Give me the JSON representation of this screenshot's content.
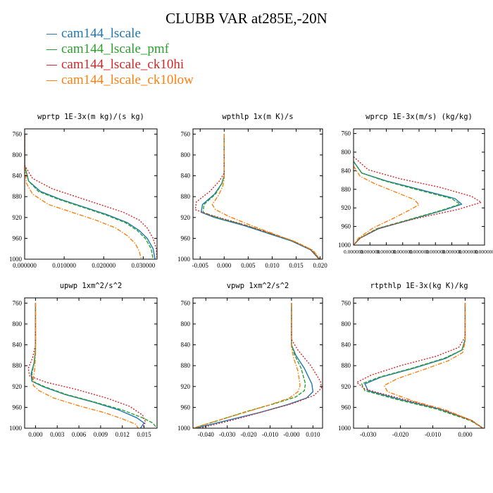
{
  "title": "CLUBB VAR at285E,-20N",
  "colors": {
    "cam144_lscale": "#1f77b4",
    "cam144_lscale_pmf": "#2ca02c",
    "cam144_lscale_ck10hi": "#d62728",
    "cam144_lscale_ck10low": "#ff7f0e"
  },
  "legend": [
    {
      "name": "cam144_lscale",
      "color": "#1f77b4",
      "style": "solid"
    },
    {
      "name": "cam144_lscale_pmf",
      "color": "#2ca02c",
      "style": "dashed"
    },
    {
      "name": "cam144_lscale_ck10hi",
      "color": "#d62728",
      "style": "dotted"
    },
    {
      "name": "cam144_lscale_ck10low",
      "color": "#ff7f0e",
      "style": "dashdot"
    }
  ],
  "chart_data": [
    {
      "type": "line",
      "title": "wprtp  1E-3x(m kg)/(s kg)",
      "xlim": [
        0,
        0.0335
      ],
      "ylim": [
        1000,
        750
      ],
      "xticks": [
        "0.000000",
        "0.010000",
        "0.020000",
        "0.030000"
      ],
      "xtick_values": [
        0,
        0.01,
        0.02,
        0.03
      ],
      "yticks": [
        "760",
        "800",
        "840",
        "880",
        "920",
        "960",
        "1000"
      ],
      "ytick_values": [
        760,
        800,
        840,
        880,
        920,
        960,
        1000
      ],
      "series": [
        {
          "name": "cam144_lscale",
          "x": [
            0,
            0,
            0.001,
            0.004,
            0.009,
            0.015,
            0.021,
            0.026,
            0.029,
            0.031,
            0.0325,
            0.033
          ],
          "y": [
            760,
            820,
            850,
            870,
            885,
            900,
            915,
            930,
            945,
            960,
            980,
            1000
          ]
        },
        {
          "name": "cam144_lscale_pmf",
          "x": [
            0,
            0,
            0.001,
            0.0035,
            0.0085,
            0.0145,
            0.0205,
            0.0255,
            0.0285,
            0.0305,
            0.032,
            0.0325
          ],
          "y": [
            760,
            820,
            850,
            870,
            885,
            900,
            915,
            930,
            945,
            960,
            980,
            1000
          ]
        },
        {
          "name": "cam144_lscale_ck10hi",
          "x": [
            0,
            0,
            0.002,
            0.007,
            0.013,
            0.019,
            0.025,
            0.029,
            0.031,
            0.0325,
            0.0333,
            0.0335
          ],
          "y": [
            760,
            820,
            845,
            865,
            880,
            895,
            910,
            925,
            940,
            960,
            980,
            1000
          ]
        },
        {
          "name": "cam144_lscale_ck10low",
          "x": [
            0,
            0,
            0.0005,
            0.002,
            0.006,
            0.012,
            0.018,
            0.023,
            0.026,
            0.028,
            0.029,
            0.0295
          ],
          "y": [
            760,
            820,
            855,
            875,
            895,
            910,
            925,
            940,
            955,
            970,
            985,
            1000
          ]
        }
      ]
    },
    {
      "type": "line",
      "title": "wpthlp  1x(m K)/s",
      "xlim": [
        -0.0065,
        0.0205
      ],
      "ylim": [
        1000,
        750
      ],
      "xticks": [
        "-0.005",
        "0.000",
        "0.005",
        "0.010",
        "0.015",
        "0.020"
      ],
      "xtick_values": [
        -0.005,
        0,
        0.005,
        0.01,
        0.015,
        0.02
      ],
      "yticks": [
        "760",
        "800",
        "840",
        "880",
        "920",
        "960",
        "1000"
      ],
      "ytick_values": [
        760,
        800,
        840,
        880,
        920,
        960,
        1000
      ],
      "series": [
        {
          "name": "cam144_lscale",
          "x": [
            0,
            0,
            -0.0005,
            -0.002,
            -0.0045,
            -0.0048,
            -0.002,
            0.004,
            0.009,
            0.014,
            0.018,
            0.0198
          ],
          "y": [
            760,
            840,
            855,
            875,
            895,
            910,
            920,
            935,
            950,
            965,
            982,
            1000
          ]
        },
        {
          "name": "cam144_lscale_pmf",
          "x": [
            0,
            0,
            -0.0005,
            -0.0018,
            -0.0042,
            -0.0044,
            -0.0015,
            0.0045,
            0.0095,
            0.0143,
            0.0182,
            0.0199
          ],
          "y": [
            760,
            840,
            855,
            875,
            895,
            910,
            920,
            935,
            950,
            965,
            982,
            1000
          ]
        },
        {
          "name": "cam144_lscale_ck10hi",
          "x": [
            0,
            0,
            -0.001,
            -0.003,
            -0.0058,
            -0.006,
            -0.003,
            0.0035,
            0.0088,
            0.0138,
            0.0178,
            0.0198
          ],
          "y": [
            760,
            835,
            850,
            870,
            890,
            905,
            915,
            932,
            948,
            963,
            980,
            1000
          ]
        },
        {
          "name": "cam144_lscale_ck10low",
          "x": [
            0,
            0,
            -0.0003,
            -0.0012,
            -0.0025,
            -0.0018,
            0.001,
            0.0055,
            0.0105,
            0.015,
            0.0185,
            0.02
          ],
          "y": [
            760,
            845,
            860,
            878,
            895,
            905,
            918,
            935,
            952,
            967,
            983,
            1000
          ]
        }
      ]
    },
    {
      "type": "line",
      "title": "wprcp  1E-3x(m/s) (kg/kg)",
      "xlim": [
        0,
        8e-07
      ],
      "ylim": [
        1000,
        750
      ],
      "xticks": [
        "0.000000",
        "0.000000",
        "0.000000",
        "0.000000",
        "0.000000",
        "0.000000",
        "0.000000",
        "0.000000",
        "0.000000"
      ],
      "xtick_values": [
        0,
        1e-07,
        2e-07,
        3e-07,
        4e-07,
        5e-07,
        6e-07,
        7e-07,
        8e-07
      ],
      "yticks": [
        "760",
        "800",
        "840",
        "880",
        "920",
        "960",
        "1000"
      ],
      "ytick_values": [
        760,
        800,
        840,
        880,
        920,
        960,
        1000
      ],
      "series": [
        {
          "name": "cam144_lscale",
          "x": [
            0,
            5e-08,
            2e-07,
            4e-07,
            6.2e-07,
            6.6e-07,
            5.5e-07,
            3.5e-07,
            1.5e-07,
            4e-08,
            0
          ],
          "y": [
            820,
            845,
            862,
            880,
            900,
            912,
            925,
            945,
            965,
            985,
            1000
          ]
        },
        {
          "name": "cam144_lscale_pmf",
          "x": [
            0,
            5e-08,
            1.9e-07,
            3.8e-07,
            6e-07,
            6.5e-07,
            5.4e-07,
            3.4e-07,
            1.4e-07,
            4e-08,
            0
          ],
          "y": [
            820,
            845,
            862,
            880,
            900,
            912,
            925,
            945,
            965,
            985,
            1000
          ]
        },
        {
          "name": "cam144_lscale_ck10hi",
          "x": [
            0,
            9e-08,
            2.8e-07,
            5.2e-07,
            7.2e-07,
            7.8e-07,
            6.4e-07,
            3.8e-07,
            1.6e-07,
            4e-08,
            0
          ],
          "y": [
            810,
            838,
            857,
            875,
            895,
            908,
            923,
            943,
            963,
            985,
            1000
          ]
        },
        {
          "name": "cam144_lscale_ck10low",
          "x": [
            0,
            4e-08,
            1.3e-07,
            2.5e-07,
            3.7e-07,
            4e-07,
            3.4e-07,
            2.4e-07,
            1.2e-07,
            3e-08,
            0
          ],
          "y": [
            830,
            852,
            868,
            885,
            902,
            913,
            925,
            943,
            963,
            985,
            1000
          ]
        }
      ]
    },
    {
      "type": "line",
      "title": "upwp  1xm^2/s^2",
      "xlim": [
        -0.0015,
        0.0168
      ],
      "ylim": [
        1000,
        750
      ],
      "xticks": [
        "0.000",
        "0.003",
        "0.006",
        "0.009",
        "0.012",
        "0.015"
      ],
      "xtick_values": [
        0,
        0.003,
        0.006,
        0.009,
        0.012,
        0.015
      ],
      "yticks": [
        "760",
        "800",
        "840",
        "880",
        "920",
        "960",
        "1000"
      ],
      "ytick_values": [
        760,
        800,
        840,
        880,
        920,
        960,
        1000
      ],
      "series": [
        {
          "name": "cam144_lscale",
          "x": [
            0,
            0,
            -0.0002,
            -0.0006,
            -0.0005,
            0.001,
            0.004,
            0.008,
            0.0115,
            0.014,
            0.015,
            0.0145
          ],
          "y": [
            760,
            850,
            875,
            895,
            910,
            920,
            935,
            950,
            965,
            980,
            990,
            1000
          ]
        },
        {
          "name": "cam144_lscale_pmf",
          "x": [
            0,
            0,
            -0.0002,
            -0.0005,
            -0.0004,
            0.0012,
            0.0042,
            0.0082,
            0.012,
            0.0148,
            0.0162,
            0.0168
          ],
          "y": [
            760,
            850,
            875,
            895,
            910,
            920,
            935,
            950,
            965,
            980,
            990,
            1000
          ]
        },
        {
          "name": "cam144_lscale_ck10hi",
          "x": [
            0,
            0,
            -0.0004,
            -0.001,
            -0.0008,
            0.0015,
            0.0055,
            0.0098,
            0.013,
            0.0148,
            0.0152,
            0.0148
          ],
          "y": [
            760,
            840,
            865,
            885,
            900,
            912,
            925,
            942,
            958,
            975,
            988,
            1000
          ]
        },
        {
          "name": "cam144_lscale_ck10low",
          "x": [
            0,
            0,
            -0.0001,
            -0.0003,
            -0.0003,
            0.0005,
            0.0025,
            0.006,
            0.0095,
            0.012,
            0.0138,
            0.0142
          ],
          "y": [
            760,
            860,
            885,
            905,
            918,
            928,
            942,
            957,
            970,
            982,
            992,
            1000
          ]
        }
      ]
    },
    {
      "type": "line",
      "title": "vpwp  1xm^2/s^2",
      "xlim": [
        -0.046,
        0.0145
      ],
      "ylim": [
        1000,
        750
      ],
      "xticks": [
        "-0.040",
        "-0.030",
        "-0.020",
        "-0.010",
        "-0.000",
        "0.010"
      ],
      "xtick_values": [
        -0.04,
        -0.03,
        -0.02,
        -0.01,
        0,
        0.01
      ],
      "yticks": [
        "760",
        "800",
        "840",
        "880",
        "920",
        "960",
        "1000"
      ],
      "ytick_values": [
        760,
        800,
        840,
        880,
        920,
        960,
        1000
      ],
      "series": [
        {
          "name": "cam144_lscale",
          "x": [
            0,
            0,
            0.002,
            0.006,
            0.0095,
            0.01,
            0.007,
            -0.002,
            -0.015,
            -0.03,
            -0.045
          ],
          "y": [
            760,
            840,
            860,
            885,
            915,
            930,
            942,
            955,
            970,
            985,
            1000
          ]
        },
        {
          "name": "cam144_lscale_pmf",
          "x": [
            0,
            0,
            0.0015,
            0.0045,
            0.0065,
            0.006,
            0.002,
            -0.008,
            -0.021,
            -0.034,
            -0.046
          ],
          "y": [
            760,
            840,
            860,
            885,
            915,
            928,
            940,
            953,
            968,
            985,
            1000
          ]
        },
        {
          "name": "cam144_lscale_ck10hi",
          "x": [
            0,
            0,
            0.003,
            0.009,
            0.0135,
            0.014,
            0.0105,
            0.001,
            -0.013,
            -0.028,
            -0.043
          ],
          "y": [
            760,
            830,
            850,
            880,
            910,
            923,
            937,
            952,
            968,
            985,
            1000
          ]
        },
        {
          "name": "cam144_lscale_ck10low",
          "x": [
            0,
            0,
            0.001,
            0.003,
            0.004,
            0.003,
            -0.001,
            -0.01,
            -0.022,
            -0.035,
            -0.046
          ],
          "y": [
            760,
            845,
            865,
            890,
            918,
            930,
            942,
            955,
            970,
            986,
            1000
          ]
        }
      ]
    },
    {
      "type": "line",
      "title": "rtpthlp  1E-3x(kg K)/kg",
      "xlim": [
        -0.0345,
        0.006
      ],
      "ylim": [
        1000,
        750
      ],
      "xticks": [
        "-0.030",
        "-0.020",
        "-0.010",
        "0.000"
      ],
      "xtick_values": [
        -0.03,
        -0.02,
        -0.01,
        0
      ],
      "yticks": [
        "760",
        "800",
        "840",
        "880",
        "920",
        "960",
        "1000"
      ],
      "ytick_values": [
        760,
        800,
        840,
        880,
        920,
        960,
        1000
      ],
      "series": [
        {
          "name": "cam144_lscale",
          "x": [
            0,
            0,
            -0.001,
            -0.006,
            -0.016,
            -0.026,
            -0.031,
            -0.03,
            -0.02,
            -0.008,
            0.002,
            0.0055
          ],
          "y": [
            760,
            830,
            850,
            866,
            885,
            902,
            915,
            928,
            945,
            963,
            985,
            1000
          ]
        },
        {
          "name": "cam144_lscale_pmf",
          "x": [
            0,
            0,
            -0.001,
            -0.0065,
            -0.0165,
            -0.0265,
            -0.032,
            -0.031,
            -0.021,
            -0.009,
            0.0015,
            0.0055
          ],
          "y": [
            760,
            830,
            850,
            866,
            885,
            902,
            915,
            928,
            945,
            963,
            985,
            1000
          ]
        },
        {
          "name": "cam144_lscale_ck10hi",
          "x": [
            0,
            0,
            -0.002,
            -0.009,
            -0.02,
            -0.029,
            -0.0335,
            -0.031,
            -0.02,
            -0.008,
            0.002,
            0.0055
          ],
          "y": [
            760,
            825,
            845,
            862,
            880,
            898,
            912,
            925,
            943,
            962,
            985,
            1000
          ]
        },
        {
          "name": "cam144_lscale_ck10low",
          "x": [
            0,
            0,
            -0.0008,
            -0.005,
            -0.013,
            -0.021,
            -0.025,
            -0.024,
            -0.016,
            -0.006,
            0.002,
            0.0055
          ],
          "y": [
            760,
            835,
            855,
            870,
            888,
            905,
            918,
            930,
            948,
            965,
            985,
            1000
          ]
        }
      ]
    }
  ]
}
